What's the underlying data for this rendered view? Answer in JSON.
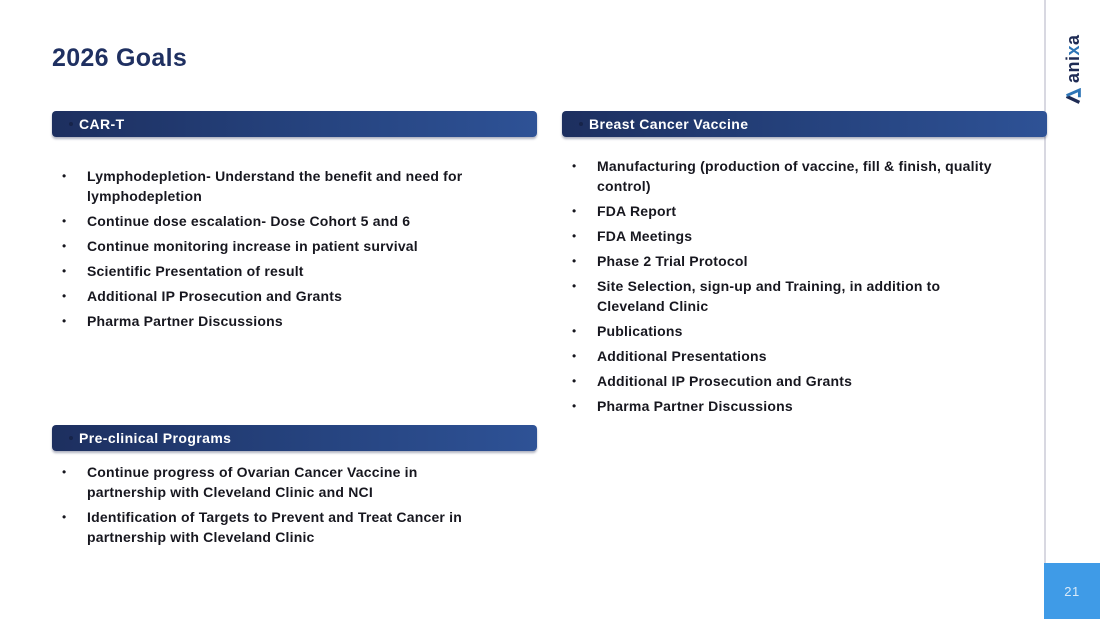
{
  "slide": {
    "title": "2026 Goals",
    "page_number": "21"
  },
  "logo": {
    "part1": "ani",
    "part2": "x",
    "part3": "a"
  },
  "list_style": {
    "bullet_char": "•"
  },
  "sections": {
    "car_t": {
      "header": "CAR-T",
      "items": [
        "Lymphodepletion- Understand the benefit and need for\nlymphodepletion",
        "Continue dose escalation- Dose Cohort 5 and 6",
        "Continue monitoring increase in patient survival",
        "Scientific Presentation of result",
        "Additional IP Prosecution and Grants",
        "Pharma Partner Discussions"
      ]
    },
    "breast_cancer_vaccine": {
      "header": "Breast Cancer Vaccine",
      "items": [
        "Manufacturing (production of vaccine, fill & finish, quality\ncontrol)",
        "FDA Report",
        "FDA Meetings",
        "Phase 2 Trial Protocol",
        "Site Selection, sign-up and Training, in addition to\nCleveland Clinic",
        "Publications",
        "Additional Presentations",
        "Additional IP Prosecution and Grants",
        "Pharma Partner Discussions"
      ]
    },
    "pre_clinical": {
      "header": "Pre-clinical Programs",
      "items": [
        "Continue progress of Ovarian Cancer Vaccine in\npartnership with Cleveland Clinic and NCI",
        "Identification of Targets to Prevent and Treat Cancer in\npartnership with Cleveland Clinic"
      ]
    }
  },
  "colors": {
    "title_text": "#1f3061",
    "bar_gradient_start": "#1d2f5f",
    "bar_gradient_end": "#2e5296",
    "bar_text": "#ffffff",
    "body_text": "#17171f",
    "divider_line": "#d8d8e1",
    "page_badge_bg": "#3f9be7",
    "page_badge_text": "#d9eaf8",
    "logo_navy": "#1e2b54",
    "logo_blue": "#2e75b6"
  }
}
